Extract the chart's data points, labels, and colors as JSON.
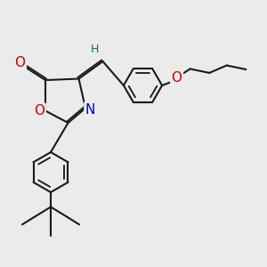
{
  "bg_color": "#ebebeb",
  "bond_color": "#1a1a1a",
  "bond_width": 1.5,
  "atom_colors": {
    "O": "#cc0000",
    "N": "#0000cc",
    "H": "#007070",
    "C": "#1a1a1a"
  },
  "font_size": 9,
  "fig_size": [
    3.0,
    3.0
  ],
  "dpi": 100
}
